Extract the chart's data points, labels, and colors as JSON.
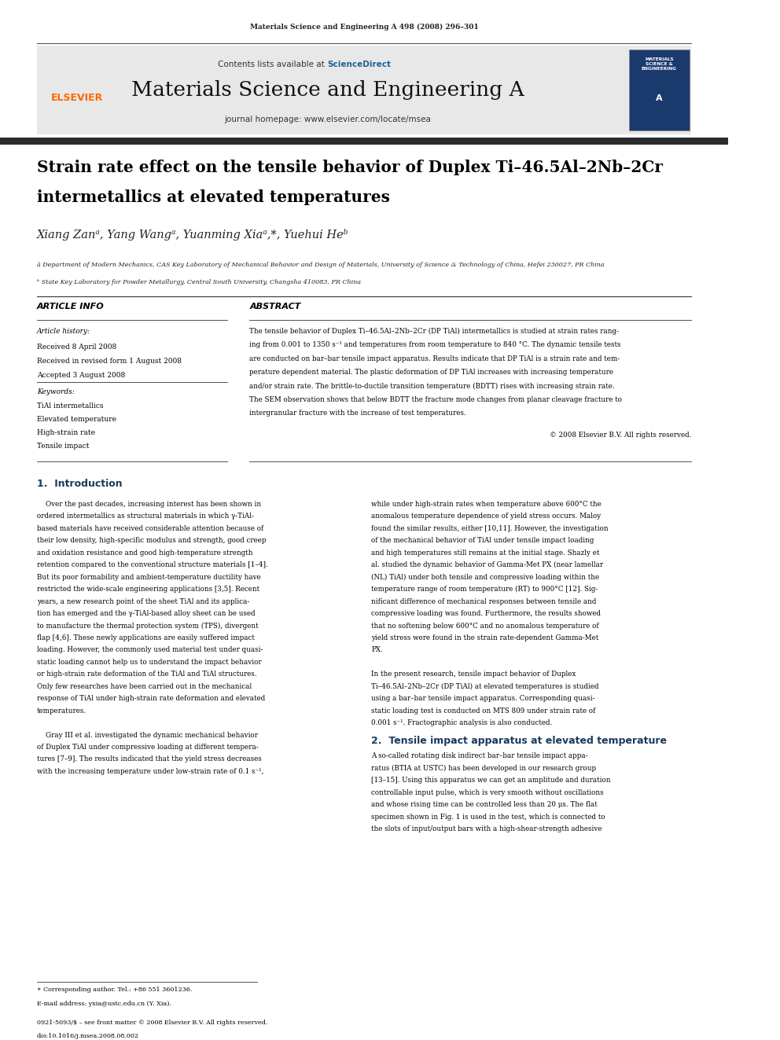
{
  "page_header": "Materials Science and Engineering A 498 (2008) 296–301",
  "journal_banner_text": "Contents lists available at ScienceDirect",
  "journal_name": "Materials Science and Engineering A",
  "journal_homepage": "journal homepage: www.elsevier.com/locate/msea",
  "title": "Strain rate effect on the tensile behavior of Duplex Ti–46.5Al–2Nb–2Cr\nintermetallics at elevated temperatures",
  "authors": "Xiang Zanà, Yang Wangà, Yuanming Xiaà,*, Yuehui Heᵇ",
  "affil_a": "à Department of Modern Mechanics, CAS Key Laboratory of Mechanical Behavior and Design of Materials, University of Science & Technology of China, Hefei 230027, PR China",
  "affil_b": "ᵇ State Key Laboratory for Powder Metallurgy, Central South University, Changsha 410083, PR China",
  "article_info_header": "ARTICLE INFO",
  "article_history_header": "Article history:",
  "received": "Received 8 April 2008",
  "revised": "Received in revised form 1 August 2008",
  "accepted": "Accepted 3 August 2008",
  "keywords_header": "Keywords:",
  "keywords": [
    "TiAl intermetallics",
    "Elevated temperature",
    "High-strain rate",
    "Tensile impact"
  ],
  "abstract_header": "ABSTRACT",
  "abstract_text": "The tensile behavior of Duplex Ti–46.5Al–2Nb–2Cr (DP TiAl) intermetallics is studied at strain rates ranging from 0.001 to 1350 s⁻¹ and temperatures from room temperature to 840 °C. The dynamic tensile tests are conducted on bar–bar tensile impact apparatus. Results indicate that DP TiAl is a strain rate and temperature dependent material. The plastic deformation of DP TiAl increases with increasing temperature and/or strain rate. The brittle-to-ductile transition temperature (BDTT) rises with increasing strain rate. The SEM observation shows that below BDTT the fracture mode changes from planar cleavage fracture to intergranular fracture with the increase of test temperatures.",
  "copyright": "© 2008 Elsevier B.V. All rights reserved.",
  "section1_title": "1.  Introduction",
  "section1_col1": "Over the past decades, increasing interest has been shown in ordered intermetallics as structural materials in which γ-TiAl-based materials have received considerable attention because of their low density, high-specific modulus and strength, good creep and oxidation resistance and good high-temperature strength retention compared to the conventional structure materials [1–4]. But its poor formability and ambient-temperature ductility have restricted the wide-scale engineering applications [3,5]. Recent years, a new research point of the sheet TiAl and its application has emerged and the γ-TiAl-based alloy sheet can be used to manufacture the thermal protection system (TPS), divergent flap [4,6]. These newly applications are easily suffered impact loading. However, the commonly used material test under quasi-static loading cannot help us to understand the impact behavior or high-strain rate deformation of the TiAl and TiAl structures. Only few researches have been carried out in the mechanical response of TiAl under high-strain rate deformation and elevated temperatures.",
  "section1_col1_cont": "Gray III et al. investigated the dynamic mechanical behavior of Duplex TiAl under compressive loading at different temperatures [7–9]. The results indicated that the yield stress decreases with the increasing temperature under low-strain rate of 0.1 s⁻¹,",
  "section1_col2": "while under high-strain rates when temperature above 600°C the anomalous temperature dependence of yield stress occurs. Maloy found the similar results, either [10,11]. However, the investigation of the mechanical behavior of TiAl under tensile impact loading and high temperatures still remains at the initial stage. Shazly et al. studied the dynamic behavior of Gamma-Met PX (near lamellar (NL) TiAl) under both tensile and compressive loading within the temperature range of room temperature (RT) to 900°C [12]. Significant difference of mechanical responses between tensile and compressive loading was found. Furthermore, the results showed that no softening below 600°C and no anomalous temperature of yield stress were found in the strain rate-dependent Gamma-Met PX.",
  "section1_col2_cont": "In the present research, tensile impact behavior of Duplex Ti–46.5Al–2Nb–2Cr (DP TiAl) at elevated temperatures is studied using a bar–bar tensile impact apparatus. Corresponding quasi-static loading test is conducted on MTS 809 under strain rate of 0.001 s⁻¹. Fractographic analysis is also conducted.",
  "section2_title": "2.  Tensile impact apparatus at elevated temperature",
  "section2_text": "A so-called rotating disk indirect bar–bar tensile impact apparatus (BTIA at USTC) has been developed in our research group [13–15]. Using this apparatus we can get an amplitude and duration controllable input pulse, which is very smooth without oscillations and whose rising time can be controlled less than 20 μs. The flat specimen shown in Fig. 1 is used in the test, which is connected to the slots of input/output bars with a high-shear-strength adhesive",
  "footnote_star": "* Corresponding author. Tel.: +86 551 3601236.",
  "footnote_email": "E-mail address: yxia@ustc.edu.cn (Y. Xia).",
  "footer_issn": "0921-5093/$ – see front matter © 2008 Elsevier B.V. All rights reserved.",
  "footer_doi": "doi:10.1016/j.msea.2008.08.002",
  "bg_color": "#ffffff",
  "text_color": "#000000",
  "header_bar_color": "#2c2c2c",
  "banner_bg_color": "#e8e8e8",
  "sciencedirect_color": "#1a6496",
  "elsevier_color": "#ff6600",
  "section_title_color": "#1a3a5c"
}
